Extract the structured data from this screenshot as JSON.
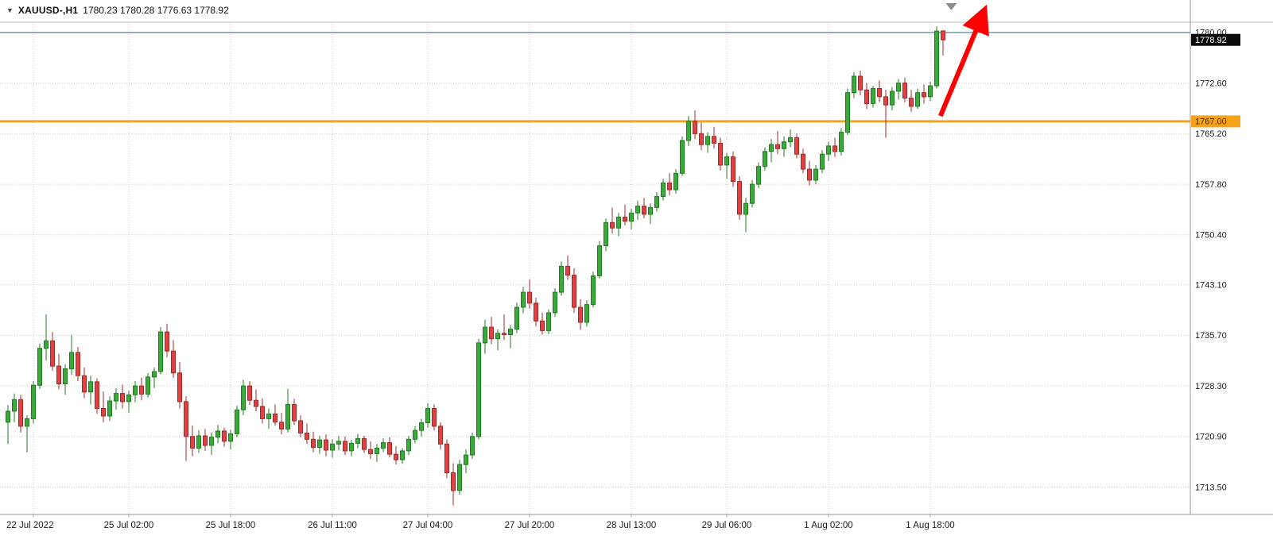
{
  "window": {
    "symbol_info": {
      "dropdown_icon": "▼",
      "symbol": "XAUUSD-,H1",
      "ohlc_text": "1780.23 1780.28 1776.63 1778.92"
    }
  },
  "chart_data": {
    "type": "candlestick",
    "symbol": "XAUUSD-",
    "timeframe": "H1",
    "current_bar": {
      "open": 1780.23,
      "high": 1780.28,
      "low": 1776.63,
      "close": 1778.92
    },
    "price_axis": {
      "min": 1709.5,
      "max": 1781.5,
      "labels": [
        "1780.00",
        "1772.60",
        "1765.20",
        "1757.80",
        "1750.40",
        "1743.10",
        "1735.70",
        "1728.30",
        "1720.90",
        "1713.50"
      ]
    },
    "time_axis": {
      "labels": [
        {
          "text": "22 Jul 2022",
          "index": 4
        },
        {
          "text": "25 Jul 02:00",
          "index": 19
        },
        {
          "text": "25 Jul 18:00",
          "index": 35
        },
        {
          "text": "26 Jul 11:00",
          "index": 51
        },
        {
          "text": "27 Jul 04:00",
          "index": 66
        },
        {
          "text": "27 Jul 20:00",
          "index": 82
        },
        {
          "text": "28 Jul 13:00",
          "index": 98
        },
        {
          "text": "29 Jul 06:00",
          "index": 113
        },
        {
          "text": "1 Aug 02:00",
          "index": 129
        },
        {
          "text": "1 Aug 18:00",
          "index": 145
        }
      ]
    },
    "grid": true,
    "legend": "none",
    "candles": [
      [
        1723.0,
        1725.5,
        1719.8,
        1724.6
      ],
      [
        1724.6,
        1727.2,
        1723.0,
        1726.3
      ],
      [
        1726.3,
        1727.0,
        1721.5,
        1722.4
      ],
      [
        1722.4,
        1724.0,
        1718.6,
        1723.5
      ],
      [
        1723.5,
        1729.0,
        1722.8,
        1728.4
      ],
      [
        1728.4,
        1734.5,
        1727.9,
        1733.8
      ],
      [
        1733.8,
        1738.8,
        1732.0,
        1734.9
      ],
      [
        1734.9,
        1736.2,
        1730.5,
        1731.2
      ],
      [
        1731.2,
        1733.0,
        1727.8,
        1728.6
      ],
      [
        1728.6,
        1731.5,
        1727.0,
        1730.8
      ],
      [
        1730.8,
        1735.8,
        1729.9,
        1733.2
      ],
      [
        1733.2,
        1734.0,
        1729.0,
        1729.8
      ],
      [
        1729.8,
        1731.0,
        1726.5,
        1727.4
      ],
      [
        1727.4,
        1729.8,
        1725.6,
        1728.9
      ],
      [
        1728.9,
        1729.4,
        1724.2,
        1725.0
      ],
      [
        1725.0,
        1727.5,
        1723.0,
        1723.9
      ],
      [
        1723.9,
        1726.8,
        1723.2,
        1726.1
      ],
      [
        1726.1,
        1728.0,
        1724.8,
        1727.2
      ],
      [
        1727.2,
        1728.5,
        1725.0,
        1726.0
      ],
      [
        1726.0,
        1727.6,
        1724.4,
        1727.0
      ],
      [
        1727.0,
        1729.0,
        1725.9,
        1728.3
      ],
      [
        1728.3,
        1729.5,
        1726.2,
        1727.1
      ],
      [
        1727.1,
        1730.2,
        1726.6,
        1729.6
      ],
      [
        1729.6,
        1731.0,
        1728.0,
        1730.4
      ],
      [
        1730.4,
        1736.9,
        1730.0,
        1736.2
      ],
      [
        1736.2,
        1737.4,
        1732.5,
        1733.4
      ],
      [
        1733.4,
        1735.0,
        1729.5,
        1730.2
      ],
      [
        1730.2,
        1731.8,
        1725.0,
        1726.0
      ],
      [
        1726.0,
        1726.8,
        1717.3,
        1720.9
      ],
      [
        1720.9,
        1722.5,
        1718.0,
        1719.2
      ],
      [
        1719.2,
        1721.8,
        1718.5,
        1721.0
      ],
      [
        1721.0,
        1722.0,
        1718.8,
        1719.6
      ],
      [
        1719.6,
        1721.5,
        1718.2,
        1720.8
      ],
      [
        1720.8,
        1722.6,
        1719.9,
        1721.7
      ],
      [
        1721.7,
        1722.2,
        1719.4,
        1720.2
      ],
      [
        1720.2,
        1721.9,
        1719.0,
        1721.3
      ],
      [
        1721.3,
        1725.4,
        1720.8,
        1724.8
      ],
      [
        1724.8,
        1729.2,
        1724.0,
        1728.3
      ],
      [
        1728.3,
        1729.0,
        1725.5,
        1726.2
      ],
      [
        1726.2,
        1727.8,
        1724.6,
        1725.3
      ],
      [
        1725.3,
        1726.5,
        1722.8,
        1723.5
      ],
      [
        1723.5,
        1725.0,
        1722.0,
        1724.2
      ],
      [
        1724.2,
        1725.6,
        1722.5,
        1723.0
      ],
      [
        1723.0,
        1724.4,
        1721.2,
        1722.0
      ],
      [
        1722.0,
        1727.9,
        1721.5,
        1725.6
      ],
      [
        1725.6,
        1726.4,
        1722.6,
        1723.2
      ],
      [
        1723.2,
        1724.0,
        1720.8,
        1721.4
      ],
      [
        1721.4,
        1722.8,
        1719.8,
        1720.5
      ],
      [
        1720.5,
        1721.6,
        1718.6,
        1719.3
      ],
      [
        1719.3,
        1721.0,
        1718.4,
        1720.4
      ],
      [
        1720.4,
        1721.2,
        1718.0,
        1718.9
      ],
      [
        1718.9,
        1720.5,
        1717.8,
        1719.8
      ],
      [
        1719.8,
        1721.0,
        1718.9,
        1720.2
      ],
      [
        1720.2,
        1720.9,
        1718.2,
        1718.8
      ],
      [
        1718.8,
        1720.4,
        1718.0,
        1719.9
      ],
      [
        1719.9,
        1721.3,
        1719.2,
        1720.6
      ],
      [
        1720.6,
        1721.0,
        1718.5,
        1719.0
      ],
      [
        1719.0,
        1720.2,
        1717.6,
        1718.4
      ],
      [
        1718.4,
        1719.8,
        1717.2,
        1719.2
      ],
      [
        1719.2,
        1720.6,
        1718.6,
        1720.0
      ],
      [
        1720.0,
        1720.8,
        1717.9,
        1718.3
      ],
      [
        1718.3,
        1719.5,
        1716.8,
        1717.5
      ],
      [
        1717.5,
        1719.2,
        1716.9,
        1718.8
      ],
      [
        1718.8,
        1721.0,
        1718.2,
        1720.5
      ],
      [
        1720.5,
        1722.4,
        1719.9,
        1721.8
      ],
      [
        1721.8,
        1723.5,
        1720.9,
        1722.9
      ],
      [
        1722.9,
        1725.8,
        1722.2,
        1725.0
      ],
      [
        1725.0,
        1725.6,
        1721.8,
        1722.4
      ],
      [
        1722.4,
        1723.0,
        1719.0,
        1719.8
      ],
      [
        1719.8,
        1720.5,
        1714.8,
        1715.6
      ],
      [
        1715.6,
        1717.0,
        1710.8,
        1713.0
      ],
      [
        1713.0,
        1717.5,
        1712.4,
        1716.8
      ],
      [
        1716.8,
        1719.0,
        1715.5,
        1718.2
      ],
      [
        1718.2,
        1721.5,
        1717.6,
        1720.9
      ],
      [
        1720.9,
        1735.2,
        1720.5,
        1734.6
      ],
      [
        1734.6,
        1738.0,
        1733.0,
        1736.9
      ],
      [
        1736.9,
        1738.4,
        1734.4,
        1735.2
      ],
      [
        1735.2,
        1736.6,
        1733.5,
        1736.0
      ],
      [
        1736.0,
        1738.8,
        1735.0,
        1735.8
      ],
      [
        1735.8,
        1737.2,
        1733.8,
        1736.6
      ],
      [
        1736.6,
        1740.5,
        1736.0,
        1739.8
      ],
      [
        1739.8,
        1742.8,
        1738.9,
        1742.0
      ],
      [
        1742.0,
        1743.9,
        1739.6,
        1740.4
      ],
      [
        1740.4,
        1741.2,
        1737.0,
        1737.8
      ],
      [
        1737.8,
        1739.0,
        1735.8,
        1736.4
      ],
      [
        1736.4,
        1739.5,
        1735.9,
        1739.0
      ],
      [
        1739.0,
        1742.6,
        1738.4,
        1742.0
      ],
      [
        1742.0,
        1746.5,
        1741.5,
        1745.8
      ],
      [
        1745.8,
        1747.4,
        1743.8,
        1744.5
      ],
      [
        1744.5,
        1745.5,
        1739.0,
        1739.8
      ],
      [
        1739.8,
        1741.0,
        1736.5,
        1737.6
      ],
      [
        1737.6,
        1740.8,
        1737.0,
        1740.2
      ],
      [
        1740.2,
        1745.0,
        1739.8,
        1744.4
      ],
      [
        1744.4,
        1749.5,
        1744.0,
        1748.8
      ],
      [
        1748.8,
        1752.8,
        1748.0,
        1752.2
      ],
      [
        1752.2,
        1754.4,
        1750.6,
        1751.4
      ],
      [
        1751.4,
        1753.6,
        1750.2,
        1753.0
      ],
      [
        1753.0,
        1754.8,
        1751.8,
        1752.4
      ],
      [
        1752.4,
        1754.2,
        1751.2,
        1753.6
      ],
      [
        1753.6,
        1755.4,
        1752.6,
        1754.6
      ],
      [
        1754.6,
        1755.8,
        1752.8,
        1753.4
      ],
      [
        1753.4,
        1755.0,
        1752.0,
        1754.4
      ],
      [
        1754.4,
        1756.6,
        1753.8,
        1756.0
      ],
      [
        1756.0,
        1758.6,
        1755.4,
        1758.0
      ],
      [
        1758.0,
        1759.4,
        1756.2,
        1757.0
      ],
      [
        1757.0,
        1760.0,
        1756.4,
        1759.4
      ],
      [
        1759.4,
        1764.8,
        1759.0,
        1764.2
      ],
      [
        1764.2,
        1767.8,
        1763.4,
        1767.0
      ],
      [
        1767.0,
        1768.6,
        1764.4,
        1765.2
      ],
      [
        1765.2,
        1766.8,
        1762.8,
        1763.6
      ],
      [
        1763.6,
        1765.4,
        1762.4,
        1764.8
      ],
      [
        1764.8,
        1766.2,
        1763.0,
        1763.8
      ],
      [
        1763.8,
        1764.6,
        1759.8,
        1760.6
      ],
      [
        1760.6,
        1762.4,
        1758.6,
        1761.8
      ],
      [
        1761.8,
        1762.6,
        1757.4,
        1758.2
      ],
      [
        1758.2,
        1759.0,
        1752.6,
        1753.4
      ],
      [
        1753.4,
        1755.8,
        1750.8,
        1755.0
      ],
      [
        1755.0,
        1758.4,
        1754.4,
        1757.8
      ],
      [
        1757.8,
        1761.0,
        1757.2,
        1760.4
      ],
      [
        1760.4,
        1763.2,
        1759.8,
        1762.6
      ],
      [
        1762.6,
        1764.4,
        1761.0,
        1763.6
      ],
      [
        1763.6,
        1765.6,
        1762.2,
        1763.0
      ],
      [
        1763.0,
        1764.8,
        1761.8,
        1764.0
      ],
      [
        1764.0,
        1765.8,
        1763.2,
        1764.6
      ],
      [
        1764.6,
        1765.2,
        1761.6,
        1762.2
      ],
      [
        1762.2,
        1763.0,
        1759.4,
        1760.0
      ],
      [
        1760.0,
        1761.2,
        1757.6,
        1758.4
      ],
      [
        1758.4,
        1760.6,
        1757.8,
        1760.0
      ],
      [
        1760.0,
        1762.8,
        1759.4,
        1762.2
      ],
      [
        1762.2,
        1764.0,
        1761.2,
        1763.4
      ],
      [
        1763.4,
        1764.6,
        1761.8,
        1762.6
      ],
      [
        1762.6,
        1766.0,
        1762.0,
        1765.4
      ],
      [
        1765.4,
        1771.8,
        1765.0,
        1771.2
      ],
      [
        1771.2,
        1774.2,
        1770.4,
        1773.6
      ],
      [
        1773.6,
        1774.4,
        1770.8,
        1771.6
      ],
      [
        1771.6,
        1772.6,
        1768.8,
        1769.6
      ],
      [
        1769.6,
        1772.2,
        1769.0,
        1771.8
      ],
      [
        1771.8,
        1773.0,
        1769.8,
        1770.6
      ],
      [
        1770.6,
        1771.6,
        1764.6,
        1769.4
      ],
      [
        1769.4,
        1772.0,
        1768.6,
        1771.4
      ],
      [
        1771.4,
        1773.2,
        1770.2,
        1772.6
      ],
      [
        1772.6,
        1773.4,
        1769.8,
        1770.4
      ],
      [
        1770.4,
        1771.6,
        1768.4,
        1769.2
      ],
      [
        1769.2,
        1771.8,
        1768.8,
        1771.2
      ],
      [
        1771.2,
        1772.4,
        1769.6,
        1770.6
      ],
      [
        1770.6,
        1772.8,
        1770.0,
        1772.2
      ],
      [
        1772.2,
        1780.9,
        1771.8,
        1780.2
      ],
      [
        1780.23,
        1780.28,
        1776.63,
        1778.92
      ]
    ],
    "horizontal_lines": [
      {
        "name": "upper-horizontal-line",
        "price": 1780.0,
        "color": "#6b8ba4",
        "width": 1.4
      },
      {
        "name": "orange-horizontal-line",
        "price": 1767.0,
        "color": "#f8a219",
        "width": 3,
        "tag_text": "1767.00",
        "tag_bg": "#f8a219",
        "tag_fg": "#402d00"
      }
    ],
    "bid_tag": {
      "text": "1778.92",
      "price": 1778.92,
      "bg": "#0a0a0a",
      "fg": "#ffffff"
    },
    "annotations": {
      "trend_arrow": {
        "from_index": 146.6,
        "from_price": 1767.8,
        "to_index": 152.5,
        "to_price": 1781.0,
        "color": "#ff0000"
      },
      "shift_marker": {
        "index": 148.3,
        "color": "#8c8c8c"
      }
    },
    "colors": {
      "background": "#ffffff",
      "grid": "#c9c9c9",
      "bull_fill": "#3da93d",
      "bull_border": "#1f7a1f",
      "bear_fill": "#df4242",
      "bear_border": "#a32727",
      "axis_text": "#1a1a1a",
      "separator": "#9a9a9a",
      "top_border": "#b5bec6"
    }
  }
}
